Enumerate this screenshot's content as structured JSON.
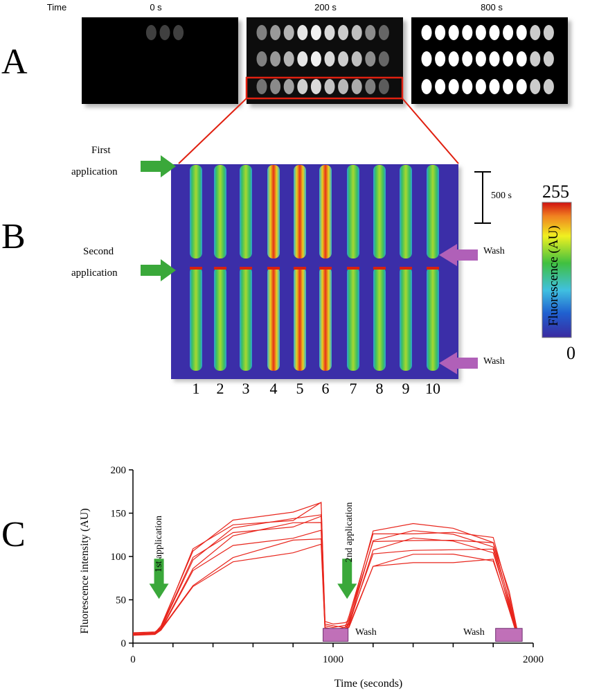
{
  "panel_a": {
    "letter": "A",
    "time_label": "Time",
    "frames": [
      {
        "time": "0 s"
      },
      {
        "time": "200 s"
      },
      {
        "time": "800 s"
      }
    ]
  },
  "panel_b": {
    "letter": "B",
    "first_application": [
      "First",
      "application"
    ],
    "second_application": [
      "Second",
      "application"
    ],
    "scale_bar": "500 s",
    "wash_label": "Wash",
    "lanes": [
      "1",
      "2",
      "3",
      "4",
      "5",
      "6",
      "7",
      "8",
      "9",
      "10"
    ],
    "colorbar": {
      "max": "255",
      "min": "0",
      "label": "Fluorescence (AU)"
    },
    "colors": {
      "background": "#3b2fa8",
      "arrow_green": "#3aa83a",
      "arrow_purple": "#b060b8"
    }
  },
  "panel_c": {
    "letter": "C",
    "first_application": "1st application",
    "second_application": "2nd application",
    "wash_label": "Wash",
    "wash_label_2": "Wash",
    "trace_color": "#e8251c"
  },
  "chart_data": {
    "type": "line",
    "xlabel": "Time (seconds)",
    "ylabel": "Fluorescence intensity (AU)",
    "xlim": [
      0,
      2000
    ],
    "ylim": [
      0,
      200
    ],
    "xticks": [
      "0",
      "1000",
      "2000"
    ],
    "yticks": [
      "0",
      "50",
      "100",
      "150",
      "200"
    ],
    "plateaus": [
      148,
      145,
      140,
      138,
      135,
      125,
      115,
      108
    ],
    "series": [
      {
        "x": [
          0,
          110,
          140,
          300,
          500,
          800,
          940,
          960,
          1000,
          1060,
          1080,
          1200,
          1400,
          1600,
          1800,
          1880,
          1920
        ],
        "y": [
          10,
          12,
          20,
          110,
          140,
          148,
          165,
          25,
          22,
          22,
          30,
          130,
          134,
          133,
          120,
          60,
          15
        ]
      },
      {
        "x": [
          0,
          110,
          140,
          300,
          500,
          800,
          940,
          960,
          1000,
          1060,
          1080,
          1200,
          1400,
          1600,
          1800,
          1880,
          1920
        ],
        "y": [
          11,
          12,
          18,
          105,
          138,
          145,
          160,
          22,
          20,
          20,
          28,
          125,
          130,
          128,
          118,
          55,
          12
        ]
      },
      {
        "x": [
          0,
          110,
          140,
          300,
          500,
          800,
          940,
          960,
          1000,
          1060,
          1080,
          1200,
          1400,
          1600,
          1800,
          1880,
          1920
        ],
        "y": [
          9,
          11,
          17,
          100,
          132,
          140,
          150,
          20,
          18,
          18,
          26,
          120,
          126,
          125,
          115,
          50,
          10
        ]
      },
      {
        "x": [
          0,
          110,
          140,
          300,
          500,
          800,
          940,
          960,
          1000,
          1060,
          1080,
          1200,
          1400,
          1600,
          1800,
          1880,
          1920
        ],
        "y": [
          12,
          13,
          18,
          95,
          128,
          138,
          145,
          18,
          16,
          16,
          25,
          115,
          122,
          120,
          112,
          48,
          12
        ]
      },
      {
        "x": [
          0,
          110,
          140,
          300,
          500,
          800,
          940,
          960,
          1000,
          1060,
          1080,
          1200,
          1400,
          1600,
          1800,
          1880,
          1920
        ],
        "y": [
          10,
          11,
          16,
          90,
          124,
          135,
          140,
          16,
          15,
          15,
          24,
          110,
          118,
          116,
          108,
          45,
          10
        ]
      },
      {
        "x": [
          0,
          110,
          140,
          300,
          500,
          800,
          940,
          960,
          1000,
          1060,
          1080,
          1200,
          1400,
          1600,
          1800,
          1880,
          1920
        ],
        "y": [
          9,
          10,
          15,
          80,
          112,
          125,
          130,
          15,
          14,
          14,
          22,
          100,
          110,
          110,
          105,
          42,
          9
        ]
      },
      {
        "x": [
          0,
          110,
          140,
          300,
          500,
          800,
          940,
          960,
          1000,
          1060,
          1080,
          1200,
          1400,
          1600,
          1800,
          1880,
          1920
        ],
        "y": [
          11,
          12,
          16,
          70,
          100,
          115,
          120,
          14,
          13,
          13,
          20,
          92,
          100,
          100,
          98,
          40,
          9
        ]
      },
      {
        "x": [
          0,
          110,
          140,
          300,
          500,
          800,
          940,
          960,
          1000,
          1060,
          1080,
          1200,
          1400,
          1600,
          1800,
          1880,
          1920
        ],
        "y": [
          10,
          11,
          15,
          62,
          92,
          108,
          115,
          13,
          12,
          12,
          19,
          85,
          95,
          96,
          94,
          38,
          8
        ]
      }
    ]
  }
}
